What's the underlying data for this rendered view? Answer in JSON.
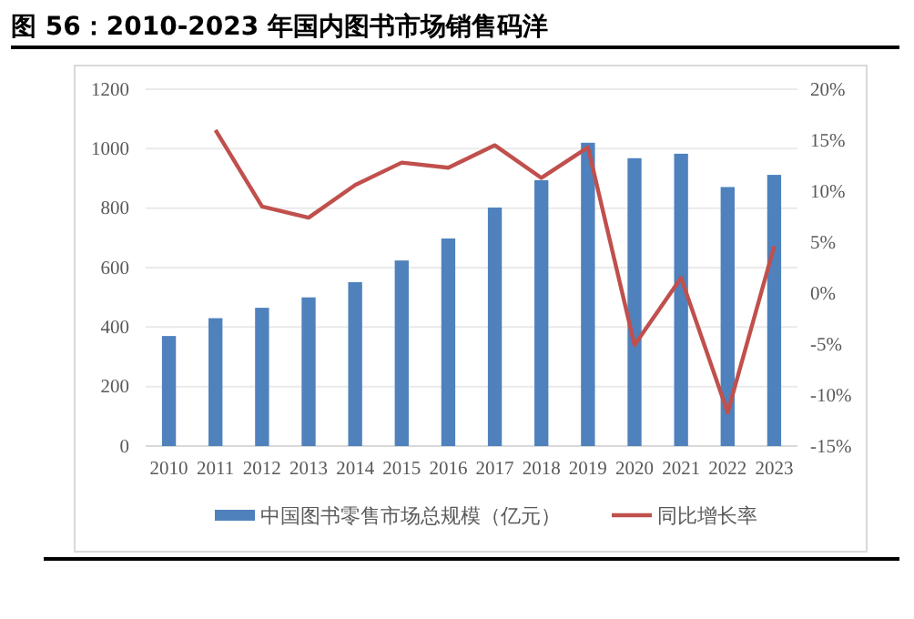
{
  "chart_data": {
    "type": "bar",
    "title": "图 56：2010-2023 年国内图书市场销售码洋",
    "categories": [
      "2010",
      "2011",
      "2012",
      "2013",
      "2014",
      "2015",
      "2016",
      "2017",
      "2018",
      "2019",
      "2020",
      "2021",
      "2022",
      "2023"
    ],
    "series": [
      {
        "name": "中国图书零售市场总规模（亿元）",
        "color": "#4f81bd",
        "values": [
          370,
          430,
          465,
          500,
          551,
          624,
          698,
          802,
          894,
          1020,
          968,
          983,
          871,
          912
        ]
      },
      {
        "name": "同比增长率",
        "type": "line",
        "axis": "y2",
        "color": "#c0504d",
        "values": [
          null,
          16,
          8.5,
          7.4,
          10.6,
          12.8,
          12.3,
          14.5,
          11.3,
          14.3,
          -5.1,
          1.5,
          -11.7,
          4.6
        ]
      }
    ],
    "ylim": [
      0,
      1200
    ],
    "yticks": [
      0,
      200,
      400,
      600,
      800,
      1000,
      1200
    ],
    "y2lim": [
      -15,
      20
    ],
    "y2ticks": [
      {
        "value": -15,
        "label": "-15%"
      },
      {
        "value": -10,
        "label": "-10%"
      },
      {
        "value": -5,
        "label": "-5%"
      },
      {
        "value": 0,
        "label": "0%"
      },
      {
        "value": 5,
        "label": "5%"
      },
      {
        "value": 10,
        "label": "10%"
      },
      {
        "value": 15,
        "label": "15%"
      },
      {
        "value": 20,
        "label": "20%"
      }
    ],
    "grid": "y",
    "legend": "bottom",
    "marker": "none",
    "line_style": "solid"
  }
}
